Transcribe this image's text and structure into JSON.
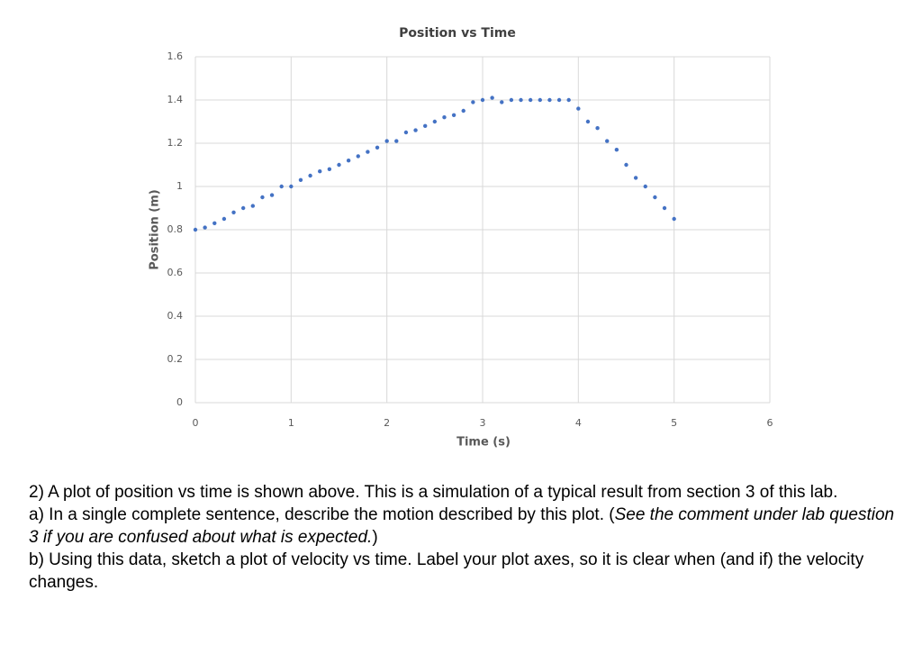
{
  "chart_data": {
    "type": "scatter",
    "title": "Position vs Time",
    "x_label": "Time (s)",
    "y_label": "Position (m)",
    "x": [
      0,
      0.1,
      0.2,
      0.3,
      0.4,
      0.5,
      0.6,
      0.7,
      0.8,
      0.9,
      1.0,
      1.1,
      1.2,
      1.3,
      1.4,
      1.5,
      1.6,
      1.7,
      1.8,
      1.9,
      2.0,
      2.1,
      2.2,
      2.3,
      2.4,
      2.5,
      2.6,
      2.7,
      2.8,
      2.9,
      3.0,
      3.1,
      3.2,
      3.3,
      3.4,
      3.5,
      3.6,
      3.7,
      3.8,
      3.9,
      4.0,
      4.1,
      4.2,
      4.3,
      4.4,
      4.5,
      4.6,
      4.7,
      4.8,
      4.9,
      5.0
    ],
    "values": [
      0.8,
      0.81,
      0.83,
      0.85,
      0.88,
      0.9,
      0.91,
      0.95,
      0.96,
      1.0,
      1.0,
      1.03,
      1.05,
      1.07,
      1.08,
      1.1,
      1.12,
      1.14,
      1.16,
      1.18,
      1.21,
      1.21,
      1.25,
      1.26,
      1.28,
      1.3,
      1.32,
      1.33,
      1.35,
      1.39,
      1.4,
      1.41,
      1.39,
      1.4,
      1.4,
      1.4,
      1.4,
      1.4,
      1.4,
      1.4,
      1.36,
      1.3,
      1.27,
      1.21,
      1.17,
      1.1,
      1.04,
      1.0,
      0.95,
      0.9,
      0.85
    ],
    "color": "#4472c4",
    "xlim": [
      0,
      6
    ],
    "xticks": [
      0,
      1,
      2,
      3,
      4,
      5,
      6
    ],
    "ylim": [
      0,
      1.6
    ],
    "yticks": [
      0,
      0.2,
      0.4,
      0.6,
      0.8,
      1,
      1.2,
      1.4,
      1.6
    ],
    "grid": true
  },
  "question": {
    "intro": "2) A plot of position vs time is shown above. This is a simulation of a typical result from section 3 of this lab.",
    "a": "a) In a single complete sentence, describe the motion described by this plot. (",
    "a_note": "See the comment under lab question 3 if you are confused about what is expected.",
    "a_close": ")",
    "b": "b) Using this data, sketch a plot of velocity vs time. Label your plot axes, so it is clear when (and if) the velocity changes."
  }
}
